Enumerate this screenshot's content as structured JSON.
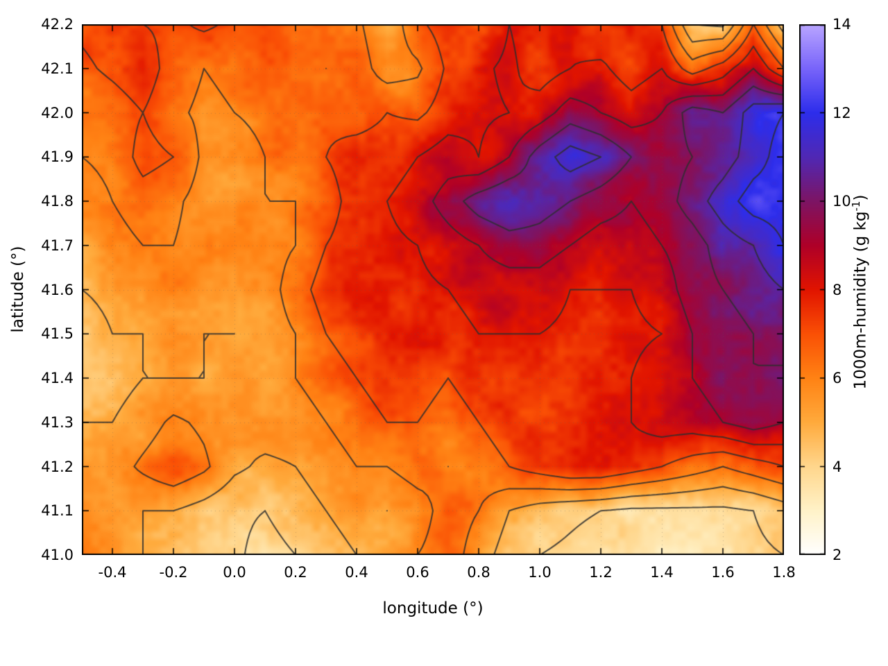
{
  "chart_data": {
    "type": "heatmap",
    "title": "",
    "xlabel": "longitude (°)",
    "ylabel": "latitude (°)",
    "x_range": [
      -0.5,
      1.8
    ],
    "y_range": [
      41.0,
      42.2
    ],
    "x_ticks": [
      -0.4,
      -0.2,
      0.0,
      0.2,
      0.4,
      0.6,
      0.8,
      1.0,
      1.2,
      1.4,
      1.6,
      1.8
    ],
    "x_tick_labels": [
      "-0.4",
      "-0.2",
      "0.0",
      "0.2",
      "0.4",
      "0.6",
      "0.8",
      "1.0",
      "1.2",
      "1.4",
      "1.6",
      "1.8"
    ],
    "y_ticks": [
      41.0,
      41.1,
      41.2,
      41.3,
      41.4,
      41.5,
      41.6,
      41.7,
      41.8,
      41.9,
      42.0,
      42.1,
      42.2
    ],
    "y_tick_labels": [
      "41.0",
      "41.1",
      "41.2",
      "41.3",
      "41.4",
      "41.5",
      "41.6",
      "41.7",
      "41.8",
      "41.9",
      "42.0",
      "42.1",
      "42.2"
    ],
    "grid": {
      "on": true,
      "style": "dotted"
    },
    "colorbar": {
      "label_prefix": "1000m-humidity (g kg",
      "label_sup": "-1",
      "label_suffix": ")",
      "min": 2,
      "max": 14,
      "ticks": [
        2,
        4,
        6,
        8,
        10,
        12,
        14
      ],
      "tick_labels": [
        "2",
        "4",
        "6",
        "8",
        "10",
        "12",
        "14"
      ],
      "palette": [
        {
          "v": 2,
          "c": "#ffffff"
        },
        {
          "v": 3,
          "c": "#fff2c8"
        },
        {
          "v": 4,
          "c": "#ffd68c"
        },
        {
          "v": 5,
          "c": "#ffaa3c"
        },
        {
          "v": 6,
          "c": "#ff8214"
        },
        {
          "v": 7,
          "c": "#fa5005"
        },
        {
          "v": 8,
          "c": "#e11400"
        },
        {
          "v": 9,
          "c": "#af0028"
        },
        {
          "v": 10,
          "c": "#7d1464"
        },
        {
          "v": 11,
          "c": "#5028b4"
        },
        {
          "v": 12,
          "c": "#2d2deb"
        },
        {
          "v": 13,
          "c": "#7864fa"
        },
        {
          "v": 14,
          "c": "#b9a5ff"
        }
      ]
    },
    "contours": {
      "levels": [
        4,
        5,
        6,
        7,
        8,
        9,
        10,
        11,
        12
      ],
      "color": "#2e2e2e"
    },
    "field": {
      "units": "g/kg",
      "lon_start": -0.5,
      "lon_step": 0.1,
      "ncols": 24,
      "lat_start": 42.2,
      "lat_step": -0.1,
      "nrows": 13,
      "values": [
        [
          7.2,
          7.5,
          7.0,
          6.8,
          7.2,
          6.8,
          7.0,
          6.5,
          6.8,
          6.2,
          5.2,
          6.8,
          7.5,
          7.0,
          8.0,
          7.5,
          7.8,
          7.2,
          7.8,
          7.0,
          4.0,
          3.8,
          7.0,
          4.5
        ],
        [
          6.8,
          7.2,
          7.6,
          6.5,
          6.0,
          6.2,
          6.5,
          6.2,
          6.0,
          6.5,
          5.5,
          5.8,
          7.2,
          7.8,
          8.2,
          7.5,
          8.0,
          8.2,
          7.5,
          8.0,
          6.5,
          7.5,
          9.0,
          7.0
        ],
        [
          6.2,
          6.5,
          7.0,
          6.2,
          5.8,
          6.0,
          6.2,
          6.5,
          6.8,
          6.5,
          7.0,
          6.8,
          7.5,
          7.8,
          8.0,
          8.5,
          9.5,
          9.0,
          8.5,
          9.0,
          10.5,
          10.0,
          11.5,
          12.0
        ],
        [
          6.0,
          6.2,
          7.4,
          7.0,
          5.8,
          5.6,
          6.0,
          6.5,
          7.0,
          7.5,
          7.5,
          8.0,
          8.5,
          8.0,
          9.0,
          10.5,
          11.5,
          11.0,
          10.0,
          9.5,
          10.0,
          10.5,
          11.5,
          12.5
        ],
        [
          5.6,
          6.0,
          6.5,
          6.2,
          5.6,
          5.6,
          6.0,
          6.0,
          6.5,
          7.5,
          8.0,
          8.5,
          9.5,
          10.5,
          11.0,
          10.5,
          10.0,
          9.5,
          9.0,
          9.5,
          10.5,
          11.5,
          12.5,
          12.5
        ],
        [
          5.2,
          5.6,
          6.0,
          6.0,
          5.6,
          5.4,
          5.6,
          6.0,
          7.0,
          7.5,
          7.8,
          8.0,
          8.5,
          9.0,
          9.5,
          9.5,
          9.0,
          8.5,
          8.5,
          9.0,
          9.5,
          10.5,
          11.0,
          12.0
        ],
        [
          5.0,
          5.2,
          5.5,
          6.0,
          5.5,
          5.2,
          5.5,
          6.5,
          7.5,
          8.0,
          8.0,
          7.8,
          8.0,
          8.5,
          8.5,
          8.5,
          8.0,
          8.0,
          8.0,
          8.5,
          9.5,
          10.0,
          10.5,
          11.0
        ],
        [
          4.6,
          5.0,
          5.0,
          5.5,
          5.0,
          5.0,
          5.5,
          6.0,
          7.0,
          7.5,
          8.0,
          7.8,
          7.5,
          8.0,
          8.0,
          8.0,
          7.8,
          7.5,
          7.8,
          8.0,
          9.0,
          9.5,
          10.0,
          10.5
        ],
        [
          4.6,
          4.6,
          5.0,
          5.0,
          5.0,
          5.5,
          5.5,
          6.0,
          6.5,
          7.0,
          7.5,
          7.5,
          7.0,
          7.5,
          7.5,
          7.5,
          7.2,
          7.5,
          8.0,
          8.5,
          9.0,
          9.5,
          10.0,
          9.8
        ],
        [
          5.0,
          5.0,
          5.5,
          6.2,
          5.8,
          5.2,
          5.5,
          5.5,
          6.0,
          6.5,
          7.0,
          7.0,
          6.5,
          7.0,
          7.5,
          7.2,
          7.5,
          8.0,
          8.0,
          8.5,
          8.5,
          9.0,
          9.5,
          9.0
        ],
        [
          5.2,
          5.5,
          6.2,
          6.8,
          6.2,
          5.2,
          4.8,
          5.0,
          5.5,
          6.0,
          6.0,
          6.5,
          6.0,
          6.5,
          7.0,
          7.5,
          8.0,
          8.0,
          7.5,
          7.0,
          6.5,
          6.0,
          6.5,
          7.0
        ],
        [
          5.5,
          5.5,
          5.0,
          5.0,
          4.6,
          4.2,
          4.0,
          4.5,
          5.0,
          5.5,
          5.0,
          5.5,
          6.5,
          6.0,
          5.0,
          4.5,
          4.2,
          4.0,
          3.8,
          3.8,
          3.8,
          3.8,
          4.0,
          4.5
        ],
        [
          6.0,
          5.5,
          5.0,
          4.8,
          4.5,
          4.2,
          3.6,
          4.0,
          4.5,
          5.0,
          5.5,
          6.0,
          6.5,
          5.5,
          4.5,
          4.0,
          3.8,
          3.5,
          3.4,
          3.4,
          3.4,
          3.5,
          3.8,
          4.0
        ]
      ]
    }
  },
  "figure": {
    "background": "#ffffff",
    "border_color": "#000000"
  }
}
